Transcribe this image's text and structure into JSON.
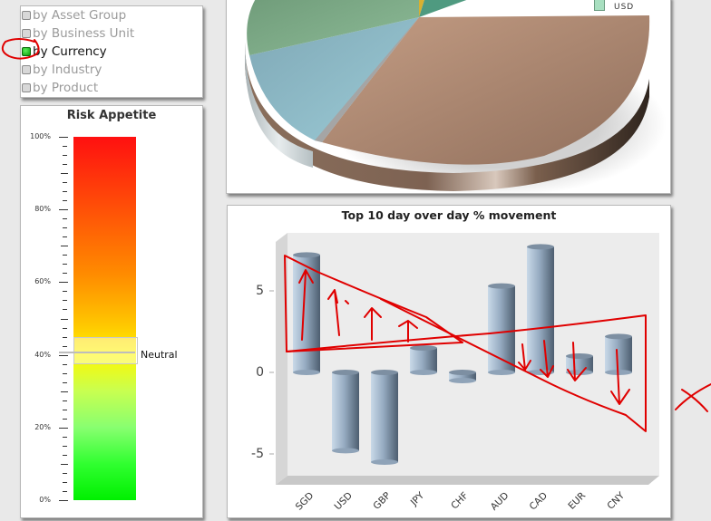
{
  "grouping_options": {
    "items": [
      {
        "label": "by Asset Group",
        "selected": false
      },
      {
        "label": "by Business Unit",
        "selected": false
      },
      {
        "label": "by Currency",
        "selected": true
      },
      {
        "label": "by Industry",
        "selected": false
      },
      {
        "label": "by Product",
        "selected": false
      }
    ]
  },
  "risk_appetite": {
    "title": "Risk Appetite",
    "ticks": [
      "100%",
      "80%",
      "60%",
      "40%",
      "20%",
      "0%"
    ],
    "marker_label": "Neutral",
    "marker_value_pct": 40
  },
  "pie_chart": {
    "legend": [
      {
        "label": "USD",
        "color": "#a8dfc0"
      }
    ]
  },
  "bar_chart": {
    "title": "Top 10 day over day % movement",
    "y_ticks": [
      "5",
      "0",
      "-5"
    ]
  },
  "annotation_color": "#e00000",
  "chart_data": [
    {
      "type": "bar",
      "title": "Top 10 day over day % movement",
      "categories": [
        "SGD",
        "USD",
        "GBP",
        "JPY",
        "CHF",
        "AUD",
        "CAD",
        "EUR",
        "CNY"
      ],
      "values": [
        7.2,
        -4.8,
        -5.5,
        1.5,
        -0.5,
        5.3,
        7.7,
        1.0,
        2.2
      ],
      "xlabel": "",
      "ylabel": "",
      "ylim": [
        -6.5,
        8.5
      ],
      "yticks": [
        -5,
        0,
        5
      ],
      "grid": false,
      "style": "3d-cylinder"
    },
    {
      "type": "pie",
      "title": "",
      "legend": [
        "USD"
      ],
      "note": "3D pie, partially cropped at top; dominant brown slice with green, blue, teal, yellow slices"
    },
    {
      "type": "gauge",
      "title": "Risk Appetite",
      "range": [
        0,
        100
      ],
      "tick_labels": [
        "0%",
        "20%",
        "40%",
        "60%",
        "80%",
        "100%"
      ],
      "marker": {
        "label": "Neutral",
        "value": 40
      }
    }
  ]
}
